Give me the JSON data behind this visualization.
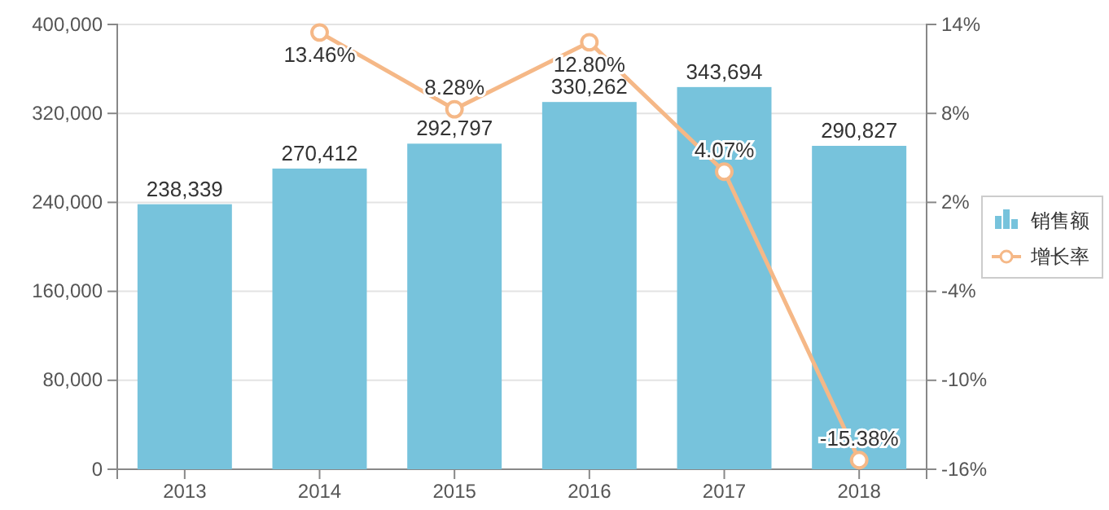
{
  "chart_data": {
    "type": "bar",
    "categories": [
      "2013",
      "2014",
      "2015",
      "2016",
      "2017",
      "2018"
    ],
    "series": [
      {
        "name": "销售额",
        "color": "#77c3dc",
        "values": [
          238339,
          270412,
          292797,
          330262,
          343694,
          290827
        ],
        "value_labels": [
          "238,339",
          "270,412",
          "292,797",
          "330,262",
          "343,694",
          "290,827"
        ]
      },
      {
        "name": "增长率",
        "type": "line",
        "axis": "y2",
        "color": "#f5b887",
        "values": [
          null,
          13.46,
          8.28,
          12.8,
          4.07,
          -15.38
        ],
        "value_labels": [
          null,
          "13.46%",
          "8.28%",
          "12.80%",
          "4.07%",
          "-15.38%"
        ]
      }
    ],
    "ylim": [
      0,
      400000
    ],
    "yticks": [
      {
        "value": 0,
        "label": "0"
      },
      {
        "value": 80000,
        "label": "80,000"
      },
      {
        "value": 160000,
        "label": "160,000"
      },
      {
        "value": 240000,
        "label": "240,000"
      },
      {
        "value": 320000,
        "label": "320,000"
      },
      {
        "value": 400000,
        "label": "400,000"
      }
    ],
    "y2lim": [
      -16,
      14
    ],
    "y2ticks": [
      {
        "value": -16,
        "label": "-16%"
      },
      {
        "value": -10,
        "label": "-10%"
      },
      {
        "value": -4,
        "label": "-4%"
      },
      {
        "value": 2,
        "label": "2%"
      },
      {
        "value": 8,
        "label": "8%"
      },
      {
        "value": 14,
        "label": "14%"
      }
    ],
    "grid": "y",
    "legend": "right",
    "marker": "circle",
    "line_style": "solid"
  }
}
